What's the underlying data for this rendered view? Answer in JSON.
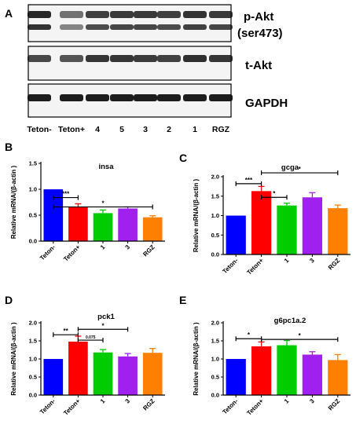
{
  "figure": {
    "panel_letters": [
      "A",
      "B",
      "C",
      "D",
      "E"
    ],
    "blot": {
      "row_labels": [
        "p-Akt",
        "(ser473)",
        "t-Akt",
        "GAPDH"
      ],
      "lane_labels": [
        "Teton-",
        "Teton+",
        "4",
        "5",
        "3",
        "2",
        "1",
        "RGZ"
      ],
      "band_color": "#111111"
    }
  },
  "chart_data": [
    {
      "panel": "B",
      "type": "bar",
      "title": "insa",
      "ylabel": "Relative mRNA/(β-actin )",
      "xlabel": "",
      "categories": [
        "Teton-",
        "Teton+",
        "1",
        "3",
        "RGZ"
      ],
      "values": [
        1.0,
        0.66,
        0.54,
        0.63,
        0.46
      ],
      "errors": [
        0.0,
        0.06,
        0.06,
        0.03,
        0.03
      ],
      "colors": [
        "#0000ff",
        "#ff0000",
        "#00cc00",
        "#a020f0",
        "#ff8000"
      ],
      "ylim": [
        0,
        1.5
      ],
      "yticks": [
        "0.0",
        "0.5",
        "1.0",
        "1.5"
      ],
      "grid": false,
      "significance": [
        {
          "from": 0,
          "to": 1,
          "y": 0.84,
          "label": "***"
        },
        {
          "from": 0,
          "to": 4,
          "y": 0.66,
          "label": "*"
        }
      ]
    },
    {
      "panel": "C",
      "type": "bar",
      "title": "gcga",
      "ylabel": "Relative mRNA/(β-actin )",
      "xlabel": "",
      "categories": [
        "Teton-",
        "Teton+",
        "1",
        "3",
        "RGZ"
      ],
      "values": [
        1.0,
        1.63,
        1.26,
        1.47,
        1.19
      ],
      "errors": [
        0.0,
        0.12,
        0.06,
        0.12,
        0.08
      ],
      "colors": [
        "#0000ff",
        "#ff0000",
        "#00cc00",
        "#a020f0",
        "#ff8000"
      ],
      "ylim": [
        0,
        2.0
      ],
      "yticks": [
        "0.0",
        "0.5",
        "1.0",
        "1.5",
        "2.0"
      ],
      "grid": false,
      "significance": [
        {
          "from": 0,
          "to": 1,
          "y": 1.82,
          "label": "***"
        },
        {
          "from": 1,
          "to": 2,
          "y": 1.47,
          "label": "*"
        },
        {
          "from": 1,
          "to": 4,
          "y": 2.1,
          "label": "*"
        }
      ]
    },
    {
      "panel": "D",
      "type": "bar",
      "title": "pck1",
      "ylabel": "Relative mRNA/(β-actin )",
      "xlabel": "",
      "categories": [
        "Teton-",
        "Teton+",
        "1",
        "3",
        "RGZ"
      ],
      "values": [
        1.0,
        1.48,
        1.18,
        1.07,
        1.17
      ],
      "errors": [
        0.0,
        0.15,
        0.08,
        0.08,
        0.12
      ],
      "colors": [
        "#0000ff",
        "#ff0000",
        "#00cc00",
        "#a020f0",
        "#ff8000"
      ],
      "ylim": [
        0,
        2.0
      ],
      "yticks": [
        "0.0",
        "0.5",
        "1.0",
        "1.5",
        "2.0"
      ],
      "grid": false,
      "significance": [
        {
          "from": 0,
          "to": 1,
          "y": 1.67,
          "label": "**"
        },
        {
          "from": 1,
          "to": 2,
          "y": 1.52,
          "label": "0.075"
        },
        {
          "from": 1,
          "to": 3,
          "y": 1.82,
          "label": "*"
        }
      ]
    },
    {
      "panel": "E",
      "type": "bar",
      "title": "g6pc1a.2",
      "ylabel": "Relative mRNA/(β-actin )",
      "xlabel": "",
      "categories": [
        "Teton-",
        "Teton+",
        "1",
        "3",
        "RGZ"
      ],
      "values": [
        1.0,
        1.35,
        1.38,
        1.12,
        0.97
      ],
      "errors": [
        0.0,
        0.12,
        0.13,
        0.08,
        0.15
      ],
      "colors": [
        "#0000ff",
        "#ff0000",
        "#00cc00",
        "#a020f0",
        "#ff8000"
      ],
      "ylim": [
        0,
        2.0
      ],
      "yticks": [
        "0.0",
        "0.5",
        "1.0",
        "1.5",
        "2.0"
      ],
      "grid": false,
      "significance": [
        {
          "from": 0,
          "to": 1,
          "y": 1.56,
          "label": "*"
        },
        {
          "from": 1,
          "to": 4,
          "y": 1.54,
          "label": "*"
        }
      ]
    }
  ]
}
